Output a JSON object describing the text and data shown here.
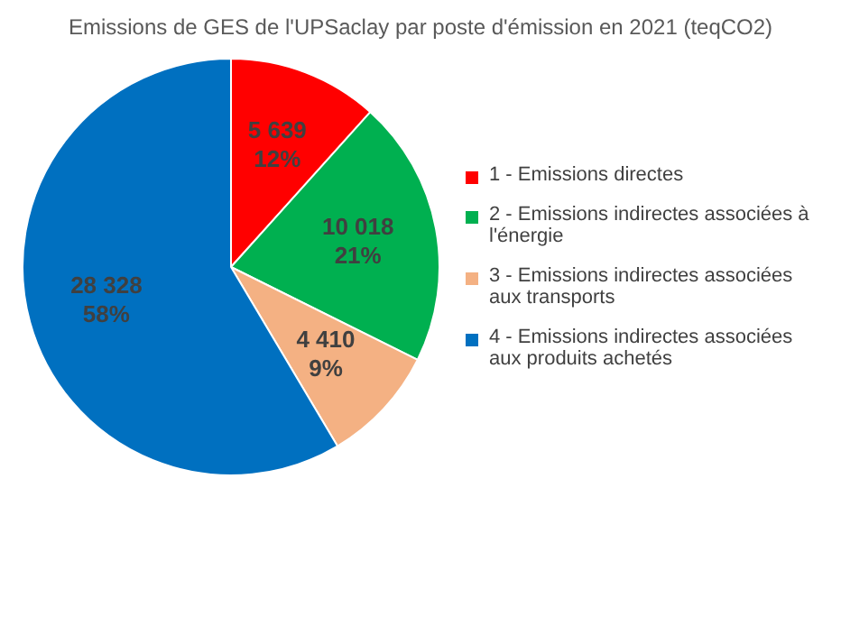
{
  "chart_data": {
    "type": "pie",
    "title": "Emissions de GES de l'UPSaclay par poste d'émission en 2021 (teqCO2)",
    "categories": [
      "1 - Emissions directes",
      "2 - Emissions indirectes associées à l'énergie",
      "3 - Emissions indirectes associées aux transports",
      "4 - Emissions indirectes associées aux produits achetés"
    ],
    "values": [
      5639,
      10018,
      4410,
      28328
    ],
    "value_labels": [
      "5 639\n12%",
      "10 018\n21%",
      "4 410\n9%",
      "28 328\n58%"
    ],
    "colors": [
      "#ff0000",
      "#00b050",
      "#f4b183",
      "#0070c0"
    ],
    "legend": "right"
  }
}
